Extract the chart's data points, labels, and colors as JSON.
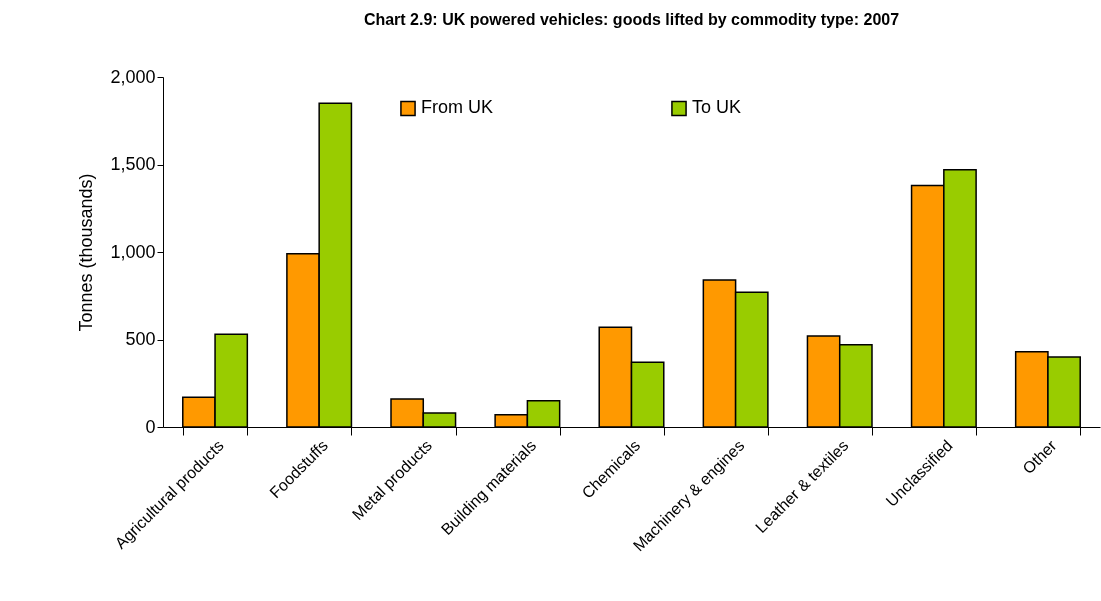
{
  "chart_data": {
    "type": "bar",
    "title": "Chart 2.9: UK powered vehicles: goods lifted by commodity type: 2007",
    "ylabel": "Tonnes (thousands)",
    "categories": [
      "Agricultural products",
      "Foodstuffs",
      "Metal products",
      "Building materials",
      "Chemicals",
      "Machinery & engines",
      "Leather & textiles",
      "Unclassified",
      "Other"
    ],
    "series": [
      {
        "name": "From UK",
        "color": "#ff9900",
        "values": [
          170,
          990,
          160,
          70,
          570,
          840,
          520,
          1380,
          430
        ]
      },
      {
        "name": "To UK",
        "color": "#99cc00",
        "values": [
          530,
          1850,
          80,
          150,
          370,
          770,
          470,
          1470,
          400
        ]
      }
    ],
    "ylim": [
      0,
      2000
    ],
    "yticks": [
      {
        "value": 0,
        "label": "0"
      },
      {
        "value": 500,
        "label": "500"
      },
      {
        "value": 1000,
        "label": "1,000"
      },
      {
        "value": 1500,
        "label": "1,500"
      },
      {
        "value": 2000,
        "label": "2,000"
      }
    ],
    "grid": false,
    "legend": "top"
  }
}
